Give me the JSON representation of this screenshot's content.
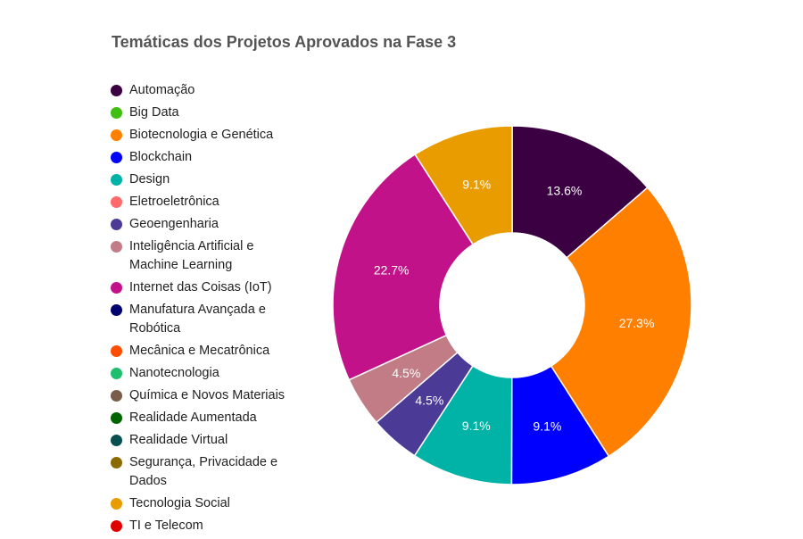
{
  "chart_data": {
    "type": "pie",
    "donut": true,
    "title": "Temáticas dos Projetos Aprovados na Fase 3",
    "legend_position": "left",
    "categories": [
      "Automação",
      "Big Data",
      "Biotecnologia e Genética",
      "Blockchain",
      "Design",
      "Eletroeletrônica",
      "Geoengenharia",
      "Inteligência Artificial e Machine Learning",
      "Internet das Coisas (IoT)",
      "Manufatura Avançada e Robótica",
      "Mecânica e Mecatrônica",
      "Nanotecnologia",
      "Química e Novos Materiais",
      "Realidade Aumentada",
      "Realidade Virtual",
      "Segurança, Privacidade e Dados",
      "Tecnologia Social",
      "TI e Telecom"
    ],
    "colors": [
      "#3b0042",
      "#3fbf12",
      "#ff7f00",
      "#0000ff",
      "#00b3a6",
      "#ff6b6b",
      "#4b3b96",
      "#c17c86",
      "#c2128a",
      "#00006e",
      "#ff4d00",
      "#1fbf6f",
      "#7a5c4b",
      "#006400",
      "#0a4f4f",
      "#8b6a00",
      "#e89c00",
      "#e00000"
    ],
    "values": [
      13.6,
      0,
      27.3,
      9.1,
      9.1,
      0,
      4.5,
      4.5,
      22.7,
      0,
      0,
      0,
      0,
      0,
      0,
      0,
      9.1,
      0
    ],
    "labels": [
      "13.6%",
      "",
      "27.3%",
      "9.1%",
      "9.1%",
      "",
      "4.5%",
      "4.5%",
      "22.7%",
      "",
      "",
      "",
      "",
      "",
      "",
      "",
      "9.1%",
      ""
    ]
  }
}
